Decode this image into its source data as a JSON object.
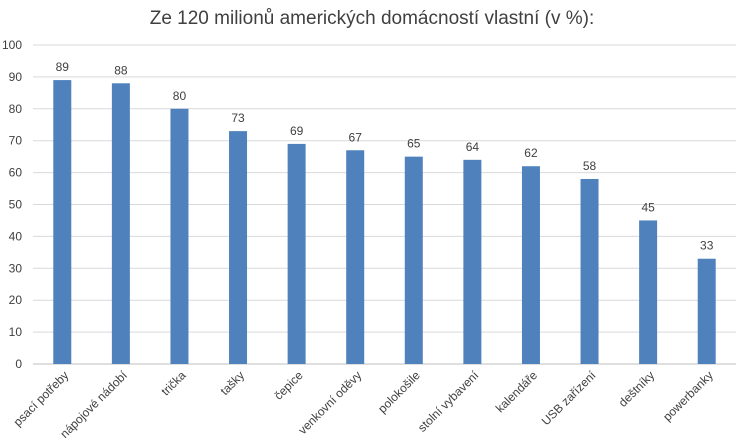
{
  "chart_data": {
    "type": "bar",
    "title": "Ze 120 milionů amerických domácností vlastní (v %):",
    "categories": [
      "psací potřeby",
      "nápojové nádobí",
      "trička",
      "tašky",
      "čepice",
      "venkovní oděvy",
      "polokošile",
      "stolní vybavení",
      "kalendáře",
      "USB zařízení",
      "deštníky",
      "powerbanky"
    ],
    "values": [
      89,
      88,
      80,
      73,
      69,
      67,
      65,
      64,
      62,
      58,
      45,
      33
    ],
    "ylim": [
      0,
      100
    ],
    "yticks": [
      0,
      10,
      20,
      30,
      40,
      50,
      60,
      70,
      80,
      90,
      100
    ],
    "xlabel": "",
    "ylabel": "",
    "grid": true,
    "legend": "none",
    "bar_color": "#4f81bd",
    "grid_color": "#d9d9d9"
  }
}
